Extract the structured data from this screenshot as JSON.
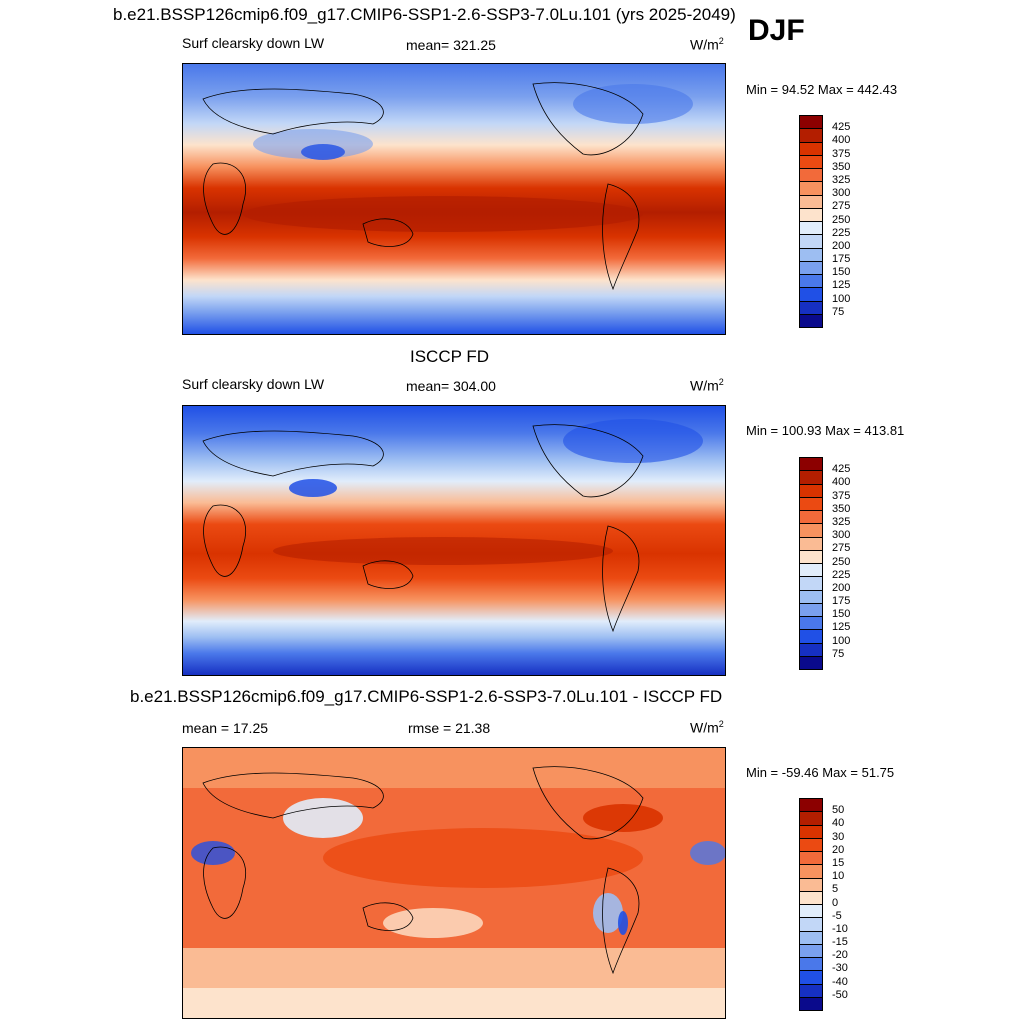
{
  "season": "DJF",
  "panels": [
    {
      "title": "b.e21.BSSP126cmip6.f09_g17.CMIP6-SSP1-2.6-SSP3-7.0Lu.101 (yrs 2025-2049)",
      "left_label": "Surf clearsky down LW",
      "center_label": "mean= 321.25",
      "units_base": "W/m",
      "units_exp": "2",
      "minmax": "Min =  94.52 Max = 442.43"
    },
    {
      "title": "ISCCP FD",
      "left_label": "Surf clearsky down LW",
      "center_label": "mean= 304.00",
      "units_base": "W/m",
      "units_exp": "2",
      "minmax": "Min = 100.93 Max = 413.81"
    },
    {
      "title": "b.e21.BSSP126cmip6.f09_g17.CMIP6-SSP1-2.6-SSP3-7.0Lu.101 - ISCCP FD",
      "left_label": "mean =  17.25",
      "center_label": "rmse =  21.38",
      "units_base": "W/m",
      "units_exp": "2",
      "minmax": "Min = -59.46 Max =  51.75"
    }
  ],
  "colorbars": {
    "absolute": {
      "levels": [
        "425",
        "400",
        "375",
        "350",
        "325",
        "300",
        "275",
        "250",
        "225",
        "200",
        "175",
        "150",
        "125",
        "100",
        "75"
      ],
      "colors": [
        "#8c0000",
        "#b31e00",
        "#d93300",
        "#eb4a12",
        "#f26a3a",
        "#f7925f",
        "#fabb94",
        "#fde3cc",
        "#e1edfb",
        "#c2d7f7",
        "#9dbef2",
        "#7aa0ee",
        "#4a78ea",
        "#2050e6",
        "#1630c2",
        "#0a0a8c"
      ]
    },
    "difference": {
      "levels": [
        "50",
        "40",
        "30",
        "20",
        "15",
        "10",
        "5",
        "0",
        "-5",
        "-10",
        "-15",
        "-20",
        "-30",
        "-40",
        "-50"
      ],
      "colors": [
        "#8c0000",
        "#b31e00",
        "#d93300",
        "#eb4a12",
        "#f26a3a",
        "#f7925f",
        "#fabb94",
        "#fde3cc",
        "#e1edfb",
        "#c2d7f7",
        "#9dbef2",
        "#7aa0ee",
        "#4a78ea",
        "#2050e6",
        "#1630c2",
        "#0a0a8c"
      ]
    }
  },
  "chart_data": [
    {
      "type": "heatmap",
      "title": "b.e21.BSSP126cmip6.f09_g17.CMIP6-SSP1-2.6-SSP3-7.0Lu.101 (yrs 2025-2049)",
      "variable": "Surf clearsky down LW",
      "units": "W/m2",
      "mean": 321.25,
      "min": 94.52,
      "max": 442.43,
      "contour_levels": [
        75,
        100,
        125,
        150,
        175,
        200,
        225,
        250,
        275,
        300,
        325,
        350,
        375,
        400,
        425
      ]
    },
    {
      "type": "heatmap",
      "title": "ISCCP FD",
      "variable": "Surf clearsky down LW",
      "units": "W/m2",
      "mean": 304.0,
      "min": 100.93,
      "max": 413.81,
      "contour_levels": [
        75,
        100,
        125,
        150,
        175,
        200,
        225,
        250,
        275,
        300,
        325,
        350,
        375,
        400,
        425
      ]
    },
    {
      "type": "heatmap",
      "title": "b.e21.BSSP126cmip6.f09_g17.CMIP6-SSP1-2.6-SSP3-7.0Lu.101 - ISCCP FD",
      "units": "W/m2",
      "mean": 17.25,
      "rmse": 21.38,
      "min": -59.46,
      "max": 51.75,
      "contour_levels": [
        -50,
        -40,
        -30,
        -20,
        -15,
        -10,
        -5,
        0,
        5,
        10,
        15,
        20,
        30,
        40,
        50
      ]
    }
  ]
}
